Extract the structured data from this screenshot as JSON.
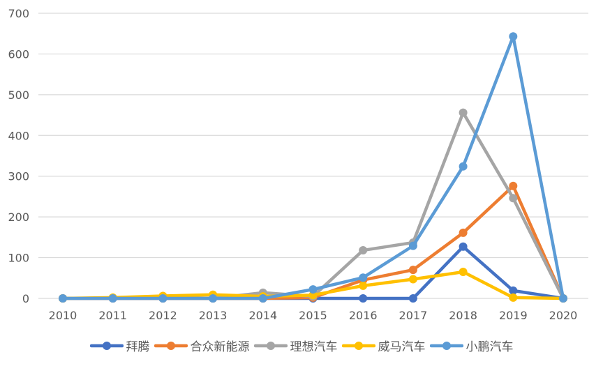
{
  "chart_data": {
    "type": "line",
    "title": "",
    "xlabel": "",
    "ylabel": "",
    "ylim": [
      0,
      700
    ],
    "yticks": [
      0,
      100,
      200,
      300,
      400,
      500,
      600,
      700
    ],
    "grid": true,
    "legend_position": "bottom",
    "categories": [
      "2010",
      "2011",
      "2012",
      "2013",
      "2014",
      "2015",
      "2016",
      "2017",
      "2018",
      "2019",
      "2020"
    ],
    "series": [
      {
        "name": "拜腾",
        "color": "#4472C4",
        "values": [
          0,
          0,
          0,
          0,
          0,
          0,
          0,
          0,
          127,
          19,
          0
        ]
      },
      {
        "name": "合众新能源",
        "color": "#ED7D31",
        "values": [
          0,
          0,
          0,
          0,
          0,
          2,
          45,
          70,
          161,
          276,
          0
        ]
      },
      {
        "name": "理想汽车",
        "color": "#A5A5A5",
        "values": [
          0,
          0,
          0,
          0,
          14,
          5,
          118,
          137,
          456,
          246,
          0
        ]
      },
      {
        "name": "威马汽车",
        "color": "#FFC000",
        "values": [
          0,
          2,
          6,
          9,
          5,
          8,
          31,
          47,
          65,
          2,
          0
        ]
      },
      {
        "name": "小鹏汽车",
        "color": "#5B9BD5",
        "values": [
          0,
          0,
          0,
          0,
          0,
          22,
          51,
          129,
          324,
          643,
          0
        ]
      }
    ]
  }
}
